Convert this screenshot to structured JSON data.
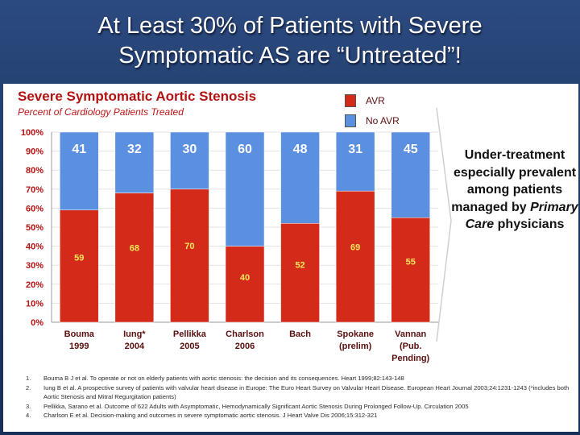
{
  "slide": {
    "title_line1": "At Least 30% of Patients with Severe",
    "title_line2": "Symptomatic AS are “Untreated”!"
  },
  "callout": {
    "line1": "Under-treatment especially prevalent among patients managed by",
    "line2_em": "Primary Care",
    "line3": "physicians"
  },
  "chart_data": {
    "type": "bar",
    "stacked": true,
    "title": "Severe Symptomatic Aortic Stenosis",
    "subtitle": "Percent of Cardiology Patients Treated",
    "ylim": [
      0,
      100
    ],
    "yticks": [
      "0%",
      "10%",
      "20%",
      "30%",
      "40%",
      "50%",
      "60%",
      "70%",
      "80%",
      "90%",
      "100%"
    ],
    "categories": [
      [
        "Bouma",
        "1999"
      ],
      [
        "Iung*",
        "2004"
      ],
      [
        "Pellikka",
        "2005"
      ],
      [
        "Charlson",
        "2006"
      ],
      [
        "Bach",
        ""
      ],
      [
        "Spokane",
        "(prelim)"
      ],
      [
        "Vannan",
        "(Pub.",
        "Pending)"
      ]
    ],
    "series": [
      {
        "name": "AVR",
        "color": "#d42a1a",
        "values": [
          59,
          68,
          70,
          40,
          52,
          69,
          55
        ]
      },
      {
        "name": "No AVR",
        "color": "#5b8fe0",
        "values": [
          41,
          32,
          30,
          60,
          48,
          31,
          45
        ]
      }
    ]
  },
  "footnotes": [
    {
      "num": "1.",
      "text": "Bouma B J et al. To operate or not on elderly patients with aortic stenosis: the decision and its consequences. Heart 1999;82:143-148"
    },
    {
      "num": "2.",
      "text": "Iung B et al. A prospective survey of patients with valvular heart disease in Europe: The Euro Heart Survey on Valvular Heart Disease. European Heart Journal 2003;24:1231-1243 (*includes both Aortic Stenosis and Mitral Regurgitation patients)"
    },
    {
      "num": "3.",
      "text": "Pellikka, Sarano et al. Outcome of 622 Adults with Asymptomatic, Hemodynamically Significant Aortic Stenosis During Prolonged Follow-Up. Circulation 2005"
    },
    {
      "num": "4.",
      "text": "Charlson E et al. Decision-making and outcomes in severe symptomatic aortic stenosis. J Heart Valve Dis 2006;15:312-321"
    }
  ]
}
